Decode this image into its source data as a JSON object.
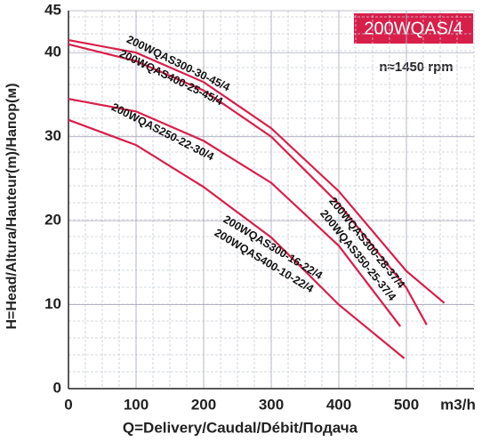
{
  "chart_data": {
    "type": "line",
    "title": "200WQAS/4",
    "subtitle": "n≈1450 rpm",
    "x_label": "Q=Delivery/Caudal/Débit/Подача",
    "x_unit": "m3/h",
    "y_label": "H=Head/Altura/Hauteur(m)/Напор(м)",
    "xlim": [
      0,
      600
    ],
    "xticks": [
      0,
      100,
      200,
      300,
      400,
      500
    ],
    "ylim": [
      0,
      45
    ],
    "yticks": [
      0,
      10,
      20,
      30,
      40,
      45
    ],
    "grid": true,
    "series": [
      {
        "color": "#d81f4a",
        "x": [
          0,
          100,
          200,
          300,
          400,
          500,
          556
        ],
        "values": [
          41.5,
          40,
          36.5,
          31,
          23.5,
          14,
          10.2
        ]
      },
      {
        "color": "#d81f4a",
        "x": [
          0,
          100,
          200,
          300,
          400,
          500,
          530
        ],
        "values": [
          41,
          39,
          35.5,
          30,
          22,
          12,
          7.6
        ]
      },
      {
        "color": "#d81f4a",
        "x": [
          0,
          100,
          200,
          300,
          400,
          491
        ],
        "values": [
          34.5,
          33,
          29.5,
          24.5,
          17,
          7.4
        ]
      },
      {
        "color": "#d81f4a",
        "x": [
          0,
          100,
          200,
          300,
          400,
          497
        ],
        "values": [
          32,
          29,
          24,
          18,
          10,
          3.6
        ]
      }
    ],
    "annotations": [
      "200WQAS300-30-45/4",
      "200WQAS400-25-45/4",
      "200WQAS250-22-30/4",
      "200WQAS300-28-37/4",
      "200WQAS350-25-37/4",
      "200WQAS300-16-22/4",
      "200WQAS400-10-22/4"
    ]
  }
}
